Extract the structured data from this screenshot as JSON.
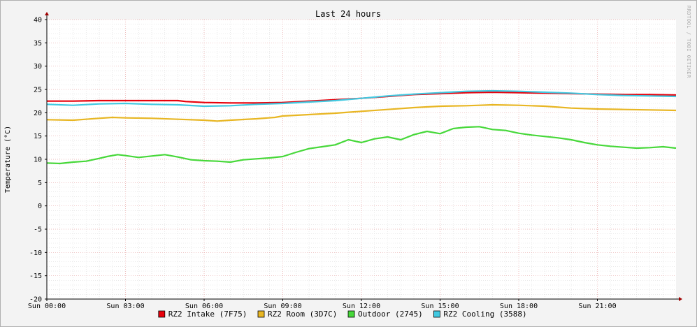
{
  "chart_data": {
    "type": "line",
    "title": "Last 24 hours",
    "ylabel": "Temperature (°C)",
    "xlabel": "",
    "watermark": "RRDTOOL / TOBI OETIKER",
    "ylim": [
      -20,
      40
    ],
    "y_ticks": [
      40,
      35,
      30,
      25,
      20,
      15,
      10,
      5,
      0,
      -5,
      -10,
      -15,
      -20
    ],
    "x_range_hours": [
      0,
      24
    ],
    "x_ticks": [
      {
        "h": 0,
        "label": "Sun 00:00"
      },
      {
        "h": 3,
        "label": "Sun 03:00"
      },
      {
        "h": 6,
        "label": "Sun 06:00"
      },
      {
        "h": 9,
        "label": "Sun 09:00"
      },
      {
        "h": 12,
        "label": "Sun 12:00"
      },
      {
        "h": 15,
        "label": "Sun 15:00"
      },
      {
        "h": 18,
        "label": "Sun 18:00"
      },
      {
        "h": 21,
        "label": "Sun 21:00"
      }
    ],
    "grid": true,
    "legend_position": "bottom",
    "series": [
      {
        "name": "RZ2 Intake (7F75)",
        "color": "#e8000b",
        "x": [
          0,
          1,
          2,
          3,
          4,
          5,
          5.3,
          6,
          7,
          8,
          9,
          10,
          11,
          12,
          13,
          14,
          15,
          16,
          17,
          18,
          19,
          20,
          21,
          22,
          23,
          24
        ],
        "y": [
          22.5,
          22.5,
          22.6,
          22.6,
          22.6,
          22.6,
          22.4,
          22.2,
          22.1,
          22.1,
          22.2,
          22.5,
          22.8,
          23.1,
          23.5,
          23.9,
          24.1,
          24.3,
          24.4,
          24.3,
          24.2,
          24.1,
          24.0,
          23.9,
          23.9,
          23.8
        ]
      },
      {
        "name": "RZ2 Room (3D7C)",
        "color": "#e8b623",
        "x": [
          0,
          1,
          2,
          2.5,
          3,
          4,
          5,
          6,
          6.5,
          7,
          8,
          8.7,
          9,
          10,
          11,
          12,
          13,
          14,
          15,
          16,
          16.5,
          17,
          18,
          19,
          20,
          21,
          22,
          23,
          24
        ],
        "y": [
          18.5,
          18.4,
          18.8,
          19.0,
          18.9,
          18.8,
          18.6,
          18.4,
          18.2,
          18.4,
          18.7,
          19.0,
          19.3,
          19.6,
          19.9,
          20.3,
          20.7,
          21.1,
          21.4,
          21.5,
          21.6,
          21.7,
          21.6,
          21.4,
          21.0,
          20.8,
          20.7,
          20.6,
          20.5
        ]
      },
      {
        "name": "Outdoor (2745)",
        "color": "#47d83a",
        "x": [
          0,
          0.5,
          1,
          1.5,
          2,
          2.3,
          2.7,
          3,
          3.5,
          4,
          4.5,
          5,
          5.5,
          6,
          6.5,
          7,
          7.5,
          8,
          8.5,
          9,
          9.5,
          10,
          10.5,
          11,
          11.5,
          12,
          12.5,
          13,
          13.5,
          14,
          14.5,
          15,
          15.5,
          16,
          16.5,
          17,
          17.5,
          18,
          18.5,
          19,
          19.5,
          20,
          20.5,
          21,
          21.5,
          22,
          22.5,
          23,
          23.5,
          24
        ],
        "y": [
          9.2,
          9.1,
          9.4,
          9.6,
          10.2,
          10.6,
          11.0,
          10.8,
          10.4,
          10.7,
          11.0,
          10.5,
          9.9,
          9.7,
          9.6,
          9.4,
          9.9,
          10.1,
          10.3,
          10.6,
          11.5,
          12.3,
          12.7,
          13.1,
          14.2,
          13.6,
          14.4,
          14.8,
          14.2,
          15.3,
          16.0,
          15.5,
          16.6,
          16.9,
          17.0,
          16.4,
          16.2,
          15.6,
          15.2,
          14.9,
          14.6,
          14.2,
          13.6,
          13.1,
          12.8,
          12.6,
          12.4,
          12.5,
          12.7,
          12.4
        ]
      },
      {
        "name": "RZ2 Cooling (3588)",
        "color": "#41c9e1",
        "x": [
          0,
          1,
          2,
          3,
          4,
          5,
          6,
          7,
          8,
          9,
          10,
          11,
          12,
          13,
          14,
          15,
          16,
          17,
          18,
          19,
          20,
          21,
          22,
          23,
          24
        ],
        "y": [
          21.8,
          21.6,
          21.9,
          22.0,
          21.8,
          21.7,
          21.4,
          21.5,
          21.8,
          22.0,
          22.3,
          22.6,
          23.1,
          23.6,
          24.0,
          24.3,
          24.6,
          24.7,
          24.6,
          24.4,
          24.2,
          23.9,
          23.7,
          23.6,
          23.5
        ]
      }
    ]
  }
}
